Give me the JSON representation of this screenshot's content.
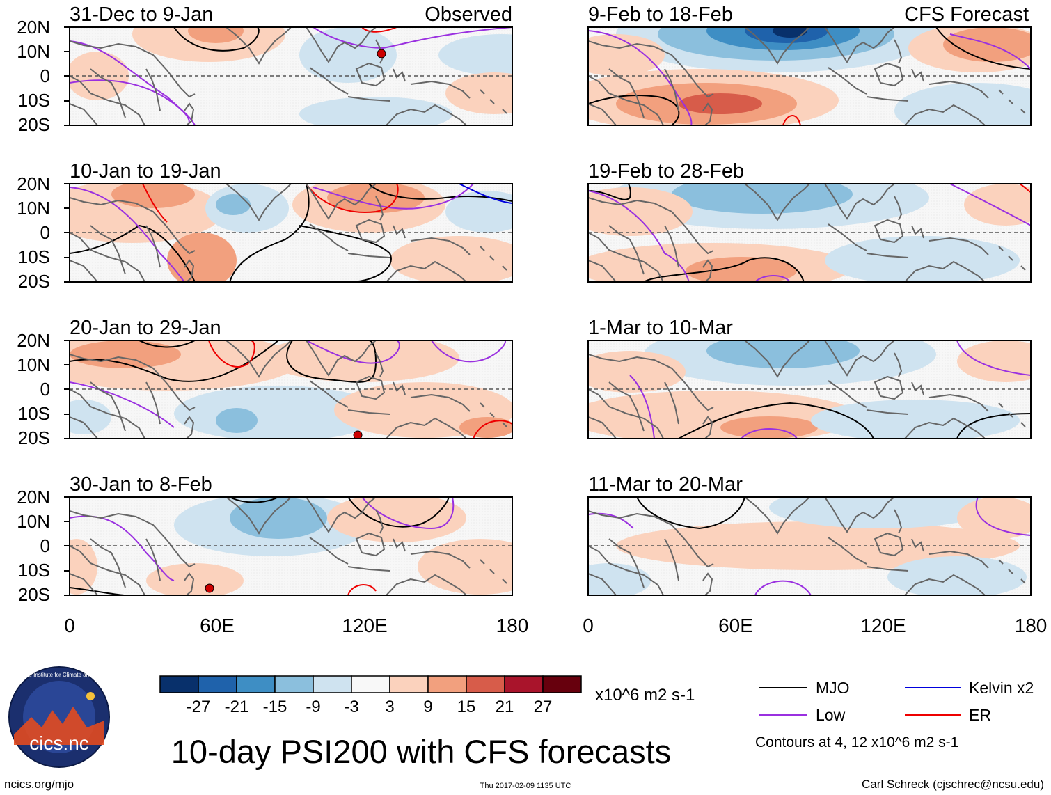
{
  "title": "10-day PSI200 with CFS forecasts",
  "left_column_label": "Observed",
  "right_column_label": "CFS Forecast",
  "panels": [
    {
      "period": "31-Dec to 9-Jan"
    },
    {
      "period": "10-Jan to 19-Jan"
    },
    {
      "period": "20-Jan to 29-Jan"
    },
    {
      "period": "30-Jan to 8-Feb"
    },
    {
      "period": "9-Feb to 18-Feb"
    },
    {
      "period": "19-Feb to 28-Feb"
    },
    {
      "period": "1-Mar to 10-Mar"
    },
    {
      "period": "11-Mar to 20-Mar"
    }
  ],
  "axes": {
    "lat_ticks": [
      "20N",
      "10N",
      "0",
      "10S",
      "20S"
    ],
    "lon_ticks": [
      "0",
      "60E",
      "120E",
      "180"
    ],
    "lat_range": [
      -20,
      20
    ],
    "lon_range": [
      0,
      180
    ]
  },
  "colorbar": {
    "ticks": [
      "-27",
      "-21",
      "-15",
      "-9",
      "-3",
      "3",
      "9",
      "15",
      "21",
      "27"
    ],
    "units": "x10^6 m2 s-1",
    "colors": [
      "#08306b",
      "#1f62ab",
      "#3e8ec4",
      "#8bbfdd",
      "#cfe3f0",
      "#f8f8f8",
      "#fbd2bd",
      "#f2a07e",
      "#d75c4a",
      "#a9142b",
      "#67000d"
    ]
  },
  "legend": {
    "items": [
      {
        "label": "MJO",
        "color": "#000000"
      },
      {
        "label": "Kelvin x2",
        "color": "#0000dd"
      },
      {
        "label": "Low",
        "color": "#9a30e0"
      },
      {
        "label": "ER",
        "color": "#ee0000"
      }
    ],
    "note": "Contours at 4, 12 x10^6 m2 s-1"
  },
  "logo": {
    "text": "cics.nc",
    "ring_text": "Cooperative Institute for Climate and Satellites"
  },
  "footer": {
    "left": "ncics.org/mjo",
    "center": "Thu 2017-02-09 1135 UTC",
    "right": "Carl Schreck (cjschrec@ncsu.edu)"
  }
}
